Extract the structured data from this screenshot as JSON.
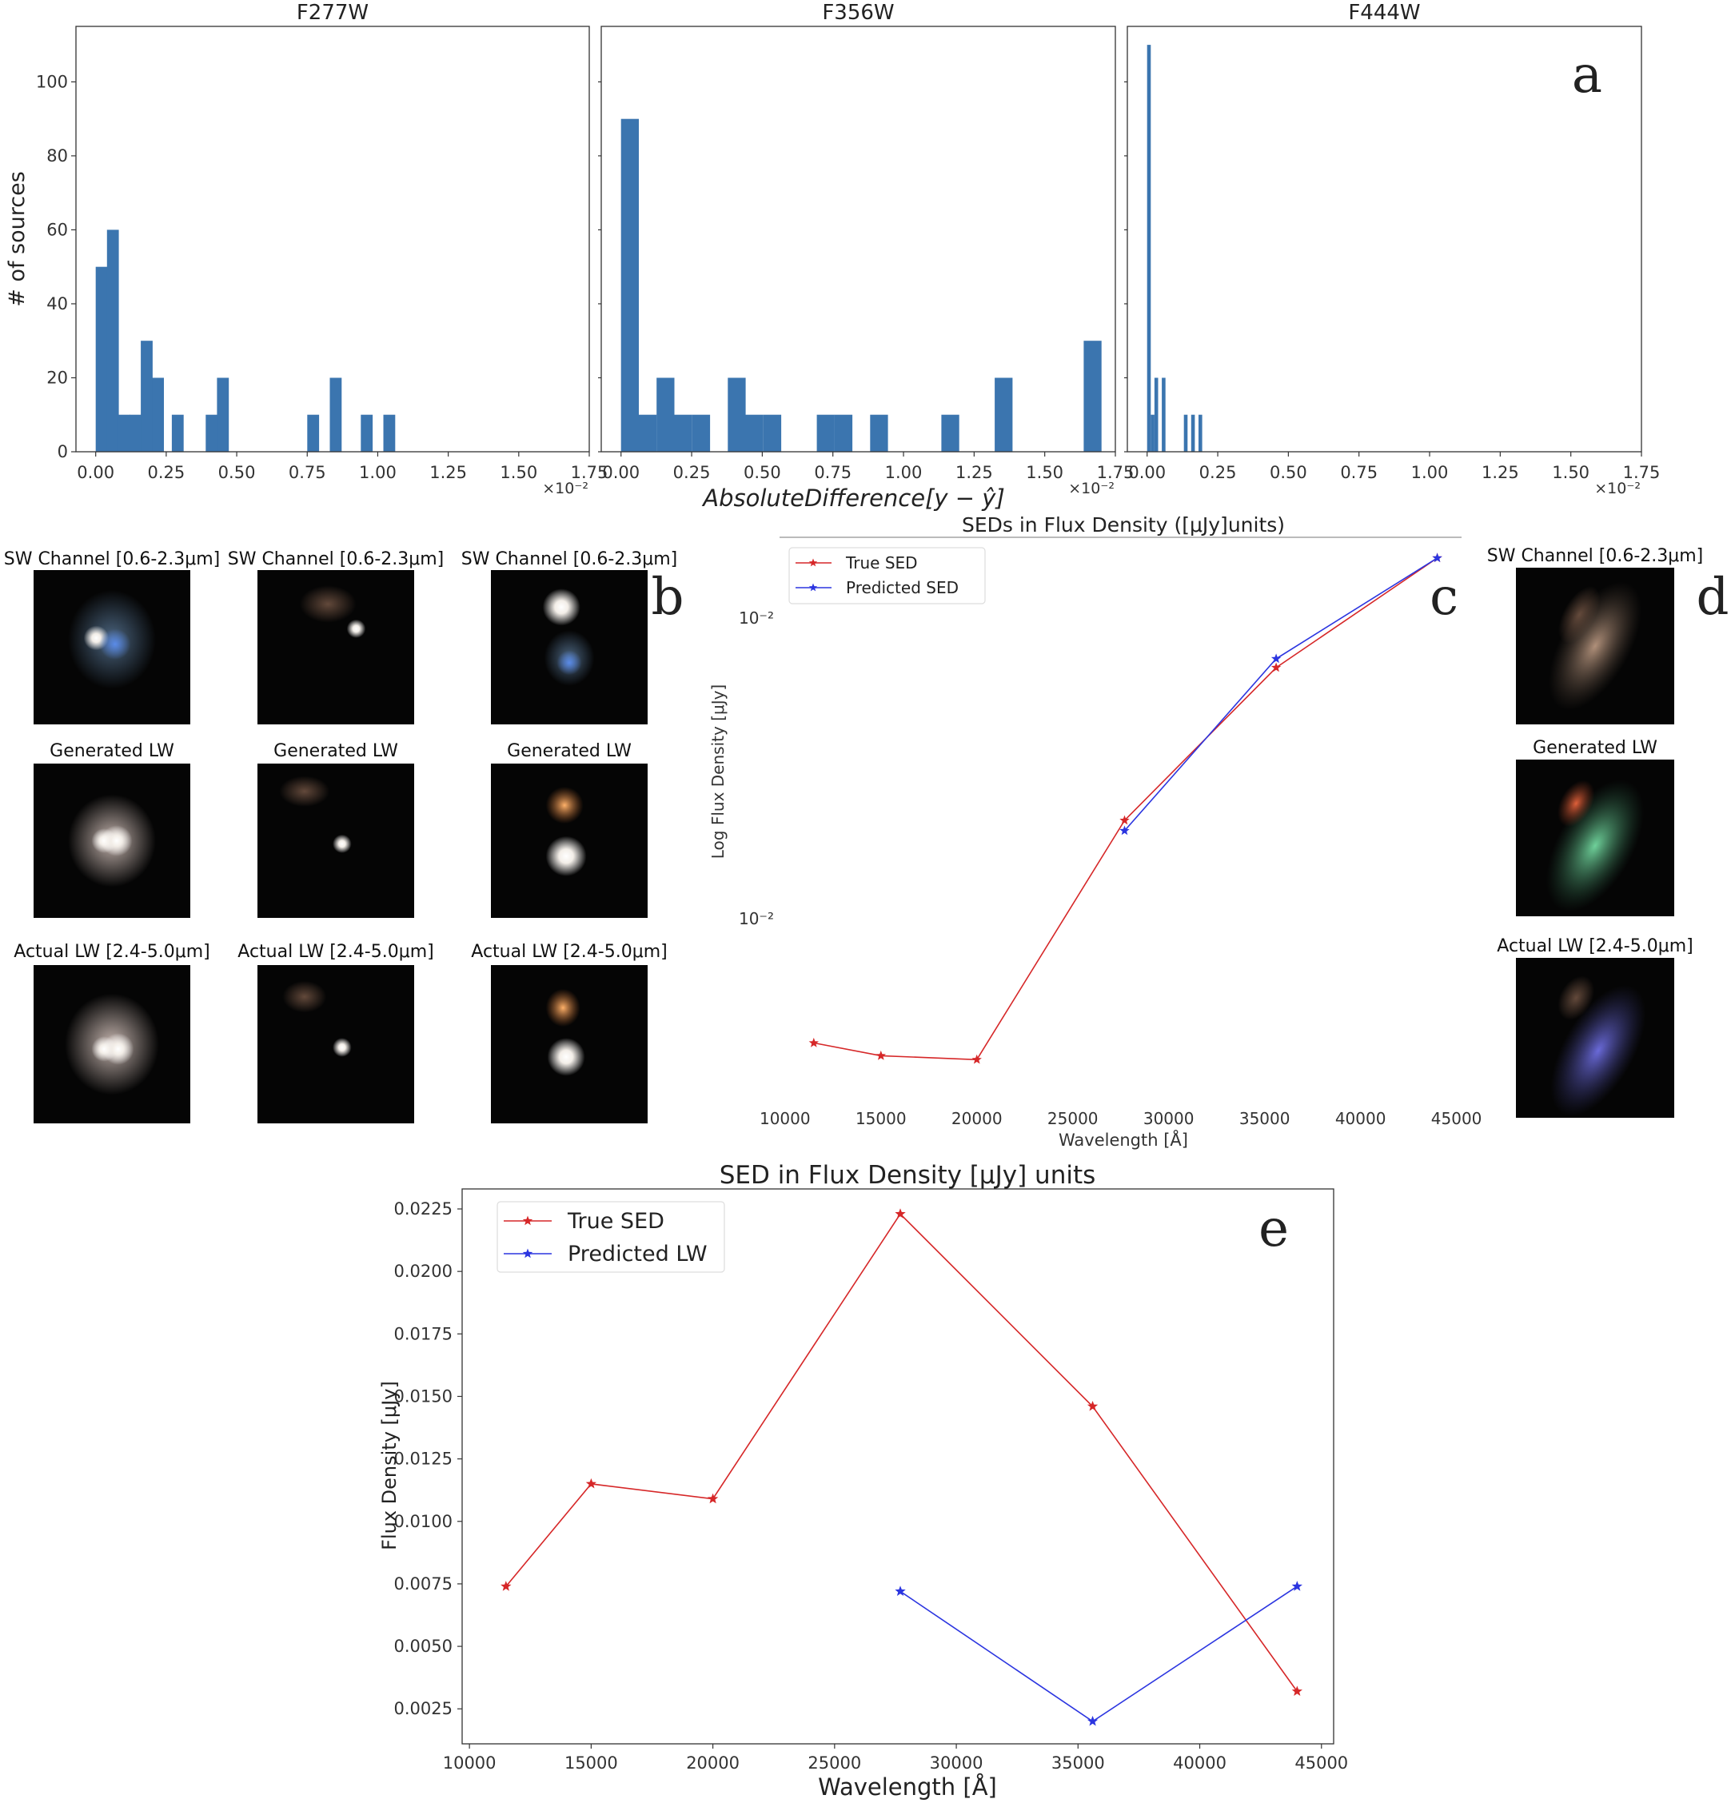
{
  "panel_letters": {
    "a": "a",
    "b": "b",
    "c": "c",
    "d": "d",
    "e": "e"
  },
  "colors": {
    "bar": "#3b75af",
    "true_sed": "#d62728",
    "predicted": "#2b35e0"
  },
  "chart_data": [
    {
      "type": "bar",
      "panel": "a",
      "title": "F277W",
      "ylabel": "# of sources",
      "xlabel": "AbsoluteDifference[y − ŷ]",
      "x_multiplier": "×10⁻²",
      "xlim": [
        -0.07,
        1.75
      ],
      "ylim": [
        0,
        115
      ],
      "xticks": [
        "0.00",
        "0.25",
        "0.50",
        "0.75",
        "1.00",
        "1.25",
        "1.50",
        "1.75"
      ],
      "yticks": [
        "0",
        "20",
        "40",
        "60",
        "80",
        "100"
      ],
      "bar_width": 0.042,
      "bins": [
        0.0,
        0.04,
        0.08,
        0.12,
        0.16,
        0.2,
        0.27,
        0.39,
        0.43,
        0.75,
        0.83,
        0.94,
        1.02
      ],
      "values": [
        50,
        60,
        10,
        10,
        30,
        20,
        10,
        10,
        20,
        10,
        20,
        10,
        10
      ]
    },
    {
      "type": "bar",
      "panel": "a",
      "title": "F356W",
      "xlim": [
        -0.07,
        1.75
      ],
      "ylim": [
        0,
        115
      ],
      "x_multiplier": "×10⁻²",
      "xticks": [
        "0.00",
        "0.25",
        "0.50",
        "0.75",
        "1.00",
        "1.25",
        "1.50",
        "1.75"
      ],
      "bar_width": 0.063,
      "bins": [
        0.0,
        0.063,
        0.126,
        0.189,
        0.252,
        0.378,
        0.441,
        0.504,
        0.693,
        0.756,
        0.882,
        1.134,
        1.323,
        1.638
      ],
      "values": [
        90,
        10,
        20,
        10,
        10,
        20,
        10,
        10,
        10,
        10,
        10,
        10,
        20,
        30
      ]
    },
    {
      "type": "bar",
      "panel": "a",
      "title": "F444W",
      "xlim": [
        -0.07,
        1.75
      ],
      "ylim": [
        0,
        115
      ],
      "x_multiplier": "×10⁻²",
      "xticks": [
        "0.00",
        "0.25",
        "0.50",
        "0.75",
        "1.00",
        "1.25",
        "1.50",
        "1.75"
      ],
      "bar_width": 0.013,
      "bins": [
        0.0,
        0.013,
        0.026,
        0.052,
        0.13,
        0.156,
        0.182
      ],
      "values": [
        110,
        10,
        20,
        20,
        10,
        10,
        10
      ]
    },
    {
      "type": "line",
      "panel": "c",
      "title": "SEDs in Flux Density ([μJy]units)",
      "xlabel": "Wavelength [Å]",
      "ylabel": "Log Flux Density [μJy]",
      "yscale": "log",
      "xlim": [
        9800,
        45600
      ],
      "ylim": [
        0.0078,
        0.0133
      ],
      "xticks": [
        "10000",
        "15000",
        "20000",
        "25000",
        "30000",
        "35000",
        "40000",
        "45000"
      ],
      "ytick_labels": [
        "10⁻²",
        "10⁻²"
      ],
      "legend": "top-left",
      "series": [
        {
          "name": "True SED",
          "x": [
            11500,
            15000,
            20000,
            27700,
            35600,
            44000
          ],
          "y": [
            0.00825,
            0.00815,
            0.00812,
            0.0102,
            0.0118,
            0.0131
          ]
        },
        {
          "name": "Predicted SED",
          "x": [
            27700,
            35600,
            44000
          ],
          "y": [
            0.0101,
            0.0119,
            0.0131
          ]
        }
      ]
    },
    {
      "type": "line",
      "panel": "e",
      "title": "SED in Flux Density [μJy] units",
      "xlabel": "Wavelength [Å]",
      "ylabel": "Flux Density [μJy]",
      "xlim": [
        9700,
        45500
      ],
      "ylim": [
        0.0011,
        0.0233
      ],
      "xticks": [
        "10000",
        "15000",
        "20000",
        "25000",
        "30000",
        "35000",
        "40000",
        "45000"
      ],
      "yticks": [
        "0.0025",
        "0.0050",
        "0.0075",
        "0.0100",
        "0.0125",
        "0.0150",
        "0.0175",
        "0.0200",
        "0.0225"
      ],
      "legend": "top-left",
      "series": [
        {
          "name": "True SED",
          "x": [
            11500,
            15000,
            20000,
            27700,
            35600,
            44000
          ],
          "y": [
            0.0074,
            0.0115,
            0.0109,
            0.0223,
            0.0146,
            0.0032
          ]
        },
        {
          "name": "Predicted LW",
          "x": [
            27700,
            35600,
            44000
          ],
          "y": [
            0.0072,
            0.002,
            0.0074
          ]
        }
      ]
    }
  ],
  "stamp_grid_b": {
    "row_titles": [
      [
        "SW Channel [0.6-2.3μm]",
        "SW Channel [0.6-2.3μm]",
        "SW Channel [0.6-2.3μm]"
      ],
      [
        "Generated LW",
        "Generated LW",
        "Generated LW"
      ],
      [
        "Actual LW [2.4-5.0μm]",
        "Actual LW [2.4-5.0μm]",
        "Actual LW [2.4-5.0μm]"
      ]
    ]
  },
  "stamp_column_d": {
    "titles": [
      "SW Channel [0.6-2.3μm]",
      "Generated LW",
      "Actual LW [2.4-5.0μm]"
    ]
  }
}
